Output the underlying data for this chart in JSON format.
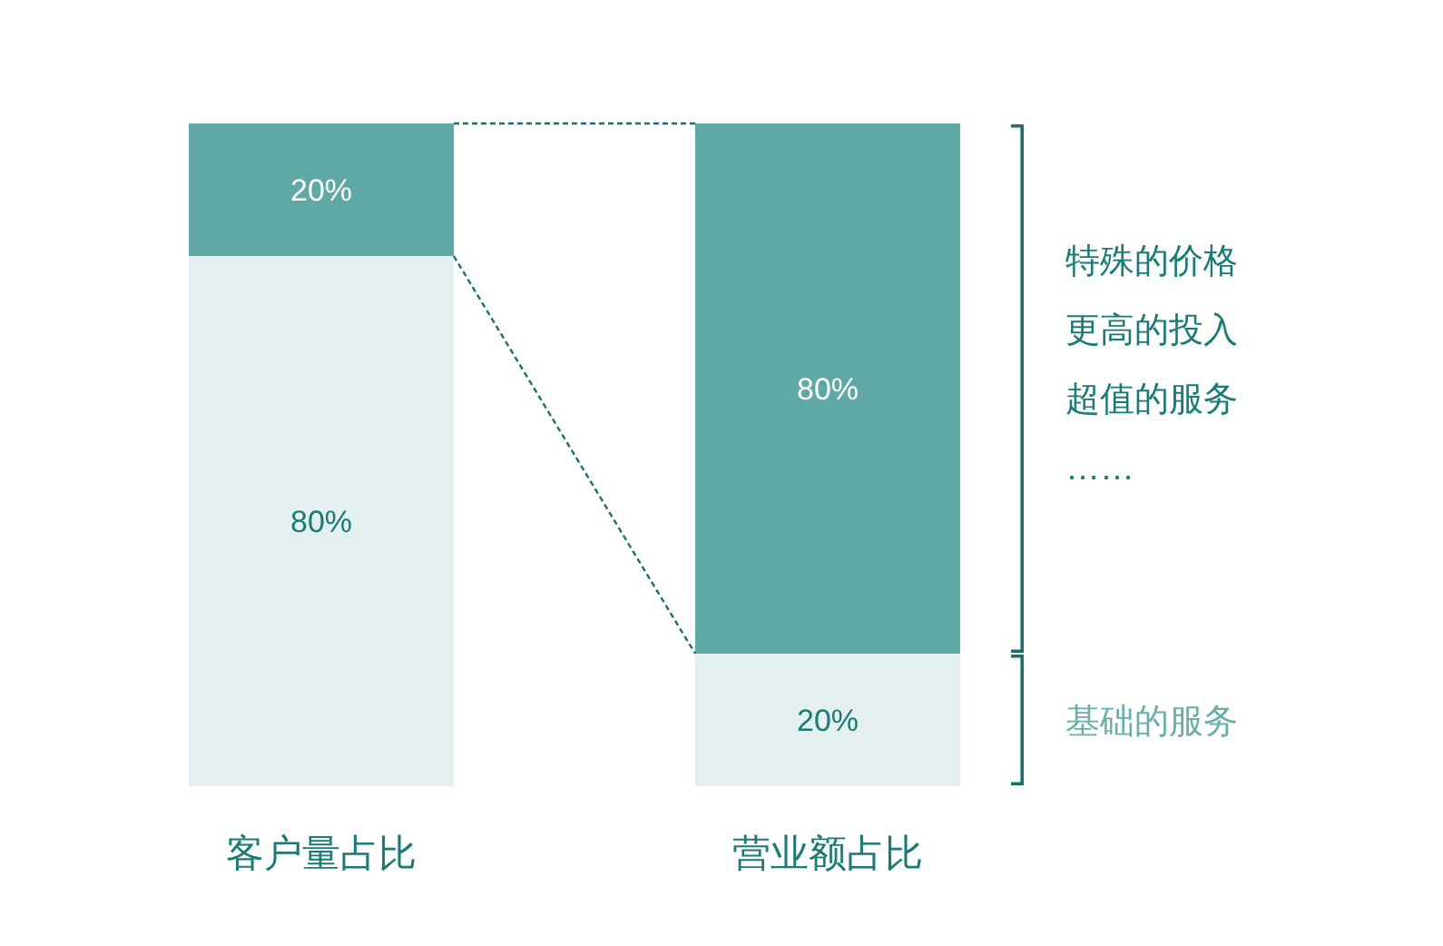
{
  "chart_data": {
    "type": "bar",
    "stacked": true,
    "categories": [
      "客户量占比",
      "营业额占比"
    ],
    "ylim": [
      0,
      100
    ],
    "tick_labels": "x",
    "series": [
      {
        "color": "#e4f0ef",
        "values": [
          80,
          20
        ],
        "value_labels": [
          "80%",
          "20%"
        ]
      },
      {
        "color": "#5fa8a6",
        "values": [
          20,
          80
        ],
        "value_labels": [
          "20%",
          "80%"
        ]
      }
    ],
    "annotations": [
      "特殊的价格",
      "更高的投入",
      "超值的服务",
      "……",
      "基础的服务"
    ]
  }
}
